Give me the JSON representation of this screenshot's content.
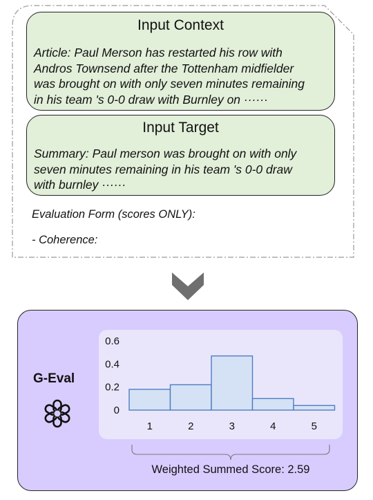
{
  "context_box": {
    "title": "Input Context",
    "body": "Article: Paul Merson has restarted his row with\nAndros Townsend after the Tottenham midfielder\nwas brought on with only seven minutes remaining\nin his team 's 0-0 draw with Burnley on  ······"
  },
  "target_box": {
    "title": "Input Target",
    "body": "Summary: Paul merson was brought on with only\nseven minutes remaining in his team 's 0-0 draw\nwith burnley  ······"
  },
  "form": {
    "header": "Evaluation Form (scores ONLY):",
    "item": "- Coherence:"
  },
  "colors": {
    "green_box": "#e2efd9",
    "panel": "#d8ccff",
    "bar_fill": "#d5e2f5",
    "bar_stroke": "#4f7cc4",
    "arrow": "#6f6f6f"
  },
  "arrow_icon": "chevron-down-icon",
  "geval": {
    "title": "G-Eval",
    "logo_icon": "openai-logo-icon",
    "score_text": "Weighted Summed Score: 2.59"
  },
  "chart_data": {
    "type": "bar",
    "categories": [
      "1",
      "2",
      "3",
      "4",
      "5"
    ],
    "values": [
      0.18,
      0.22,
      0.47,
      0.1,
      0.04
    ],
    "ylim": [
      0,
      0.6
    ],
    "yticks": [
      "0",
      "0.2",
      "0.4",
      "0.6"
    ],
    "grid": false,
    "xlabel": "",
    "ylabel": ""
  }
}
